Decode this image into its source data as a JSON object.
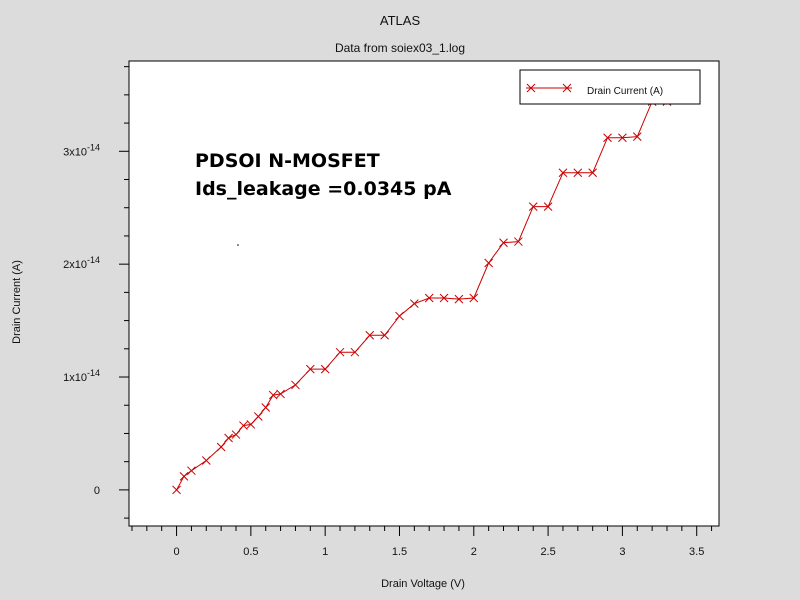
{
  "chart_data": {
    "type": "line",
    "title": "ATLAS",
    "subtitle": "Data from soiex03_1.log",
    "xlabel": "Drain Voltage (V)",
    "ylabel": "Drain Current (A)",
    "xlim": [
      -0.32,
      3.65
    ],
    "ylim": [
      -3.2e-15,
      3.8e-14
    ],
    "x_ticks": [
      0,
      0.5,
      1,
      1.5,
      2,
      2.5,
      3,
      3.5
    ],
    "x_tick_labels": [
      "0",
      "0.5",
      "1",
      "1.5",
      "2",
      "2.5",
      "3",
      "3.5"
    ],
    "y_ticks": [
      0,
      1e-14,
      2e-14,
      3e-14
    ],
    "y_tick_labels": [
      {
        "mantissa": "0",
        "exponent": ""
      },
      {
        "mantissa": "1x10",
        "exponent": "-14"
      },
      {
        "mantissa": "2x10",
        "exponent": "-14"
      },
      {
        "mantissa": "3x10",
        "exponent": "-14"
      }
    ],
    "grid": false,
    "legend_position": "top-right",
    "series": [
      {
        "name": "Drain Current (A)",
        "color": "#cc0000",
        "marker": "x",
        "x": [
          0,
          0.05,
          0.1,
          0.2,
          0.3,
          0.35,
          0.4,
          0.45,
          0.5,
          0.55,
          0.6,
          0.65,
          0.7,
          0.8,
          0.9,
          1.0,
          1.1,
          1.2,
          1.3,
          1.4,
          1.5,
          1.6,
          1.7,
          1.8,
          1.9,
          2.0,
          2.1,
          2.2,
          2.3,
          2.4,
          2.5,
          2.6,
          2.7,
          2.8,
          2.9,
          3.0,
          3.1,
          3.2,
          3.3
        ],
        "y": [
          0,
          1.2e-15,
          1.7e-15,
          2.6e-15,
          3.8e-15,
          4.6e-15,
          4.9e-15,
          5.7e-15,
          5.8e-15,
          6.5e-15,
          7.3e-15,
          8.4e-15,
          8.5e-15,
          9.3e-15,
          1.07e-14,
          1.07e-14,
          1.22e-14,
          1.22e-14,
          1.37e-14,
          1.37e-14,
          1.54e-14,
          1.65e-14,
          1.7e-14,
          1.7e-14,
          1.69e-14,
          1.7e-14,
          2.01e-14,
          2.19e-14,
          2.2e-14,
          2.51e-14,
          2.51e-14,
          2.81e-14,
          2.81e-14,
          2.81e-14,
          3.12e-14,
          3.12e-14,
          3.13e-14,
          3.44e-14,
          3.44e-14
        ]
      }
    ],
    "annotations": [
      "PDSOI N-MOSFET",
      "Ids_leakage =0.0345 pA"
    ]
  }
}
